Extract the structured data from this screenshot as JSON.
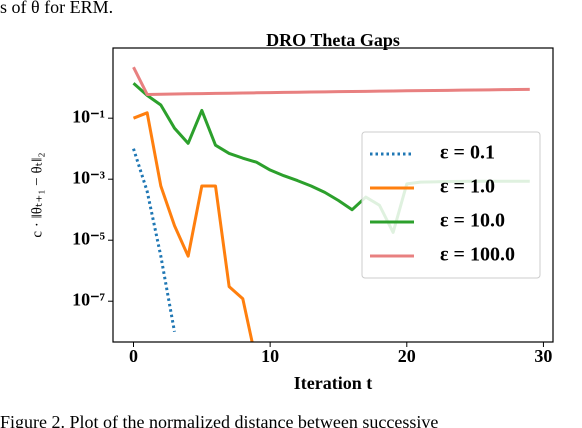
{
  "header_text": "s of θ for ERM.",
  "caption": "Figure 2. Plot of the normalized distance between successive",
  "chart_data": {
    "type": "line",
    "title": "DRO Theta Gaps",
    "xlabel": "Iteration t",
    "ylabel": "c · ‖θₜ₊₁ − θₜ‖₂",
    "yscale": "log",
    "x": [
      0,
      1,
      2,
      3,
      4,
      5,
      6,
      7,
      8,
      9,
      10,
      11,
      12,
      13,
      14,
      15,
      16,
      17,
      18,
      19,
      20,
      21,
      22,
      23,
      24,
      25,
      26,
      27,
      28,
      29
    ],
    "xlim": [
      -1.5,
      30.7
    ],
    "xticks": [
      0,
      10,
      20,
      30
    ],
    "ylim": [
      4.6e-09,
      20
    ],
    "yticks": [
      {
        "value": 0.1,
        "label": "10⁻¹"
      },
      {
        "value": 0.001,
        "label": "10⁻³"
      },
      {
        "value": 1e-05,
        "label": "10⁻⁵"
      },
      {
        "value": 1e-07,
        "label": "10⁻⁷"
      }
    ],
    "legend": "center right",
    "series": [
      {
        "name": "ε = 0.1",
        "color": "#1f77b4",
        "dashed": true,
        "values": [
          0.01,
          0.0004,
          3e-06,
          1e-08,
          null,
          null,
          null,
          null,
          null,
          null,
          null,
          null,
          null,
          null,
          null,
          null,
          null,
          null,
          null,
          null,
          null,
          null,
          null,
          null,
          null,
          null,
          null,
          null,
          null,
          null
        ]
      },
      {
        "name": "ε = 1.0",
        "color": "#ff7f0e",
        "values": [
          0.1,
          0.15,
          0.0006,
          3e-05,
          3e-06,
          0.0006,
          0.0006,
          3e-07,
          1.2e-07,
          1e-09,
          null,
          null,
          null,
          null,
          null,
          null,
          null,
          null,
          null,
          null,
          null,
          null,
          null,
          null,
          null,
          null,
          null,
          null,
          null,
          null
        ]
      },
      {
        "name": "ε = 10.0",
        "color": "#2ca02c",
        "values": [
          1.4,
          0.56,
          0.27,
          0.047,
          0.015,
          0.18,
          0.013,
          0.007,
          0.0049,
          0.0036,
          0.002,
          0.0013,
          0.0009,
          0.0006,
          0.00037,
          0.0002,
          0.0001,
          0.00026,
          0.00014,
          1.8e-05,
          0.0007,
          0.0008,
          0.00082,
          0.00084,
          0.00085,
          0.00086,
          0.00086,
          0.00086,
          0.00086,
          0.00086
        ]
      },
      {
        "name": "ε = 100.0",
        "color": "#e88080",
        "values": [
          4.7,
          0.6,
          0.61,
          0.62,
          0.63,
          0.64,
          0.65,
          0.66,
          0.67,
          0.68,
          0.69,
          0.7,
          0.71,
          0.72,
          0.73,
          0.74,
          0.75,
          0.76,
          0.77,
          0.78,
          0.79,
          0.8,
          0.81,
          0.82,
          0.83,
          0.84,
          0.85,
          0.86,
          0.87,
          0.88
        ]
      }
    ]
  }
}
